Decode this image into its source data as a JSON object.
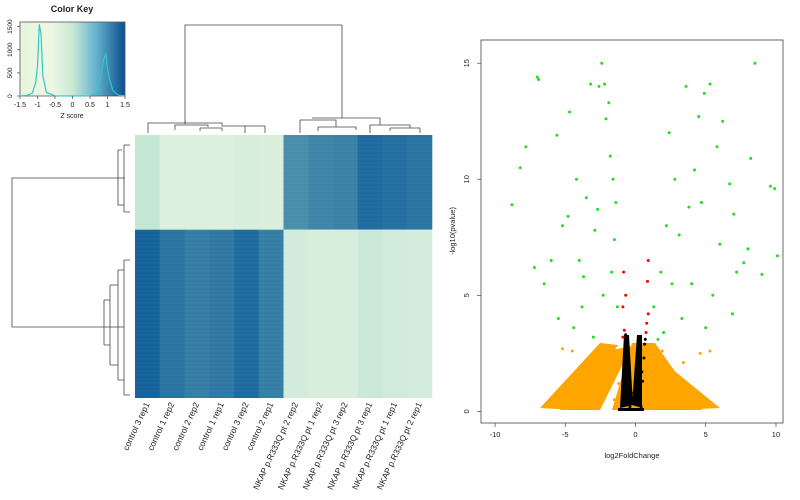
{
  "chart_data": [
    {
      "type": "heatmap",
      "title": "",
      "colorkey": {
        "title": "Color Key",
        "xlabel": "Z score",
        "x_ticks": [
          "-1.5",
          "-1",
          "-0.5",
          "0",
          "0.5",
          "1",
          "1.5"
        ],
        "y_ticks": [
          "0",
          "500",
          "1000",
          "1500"
        ],
        "xlim": [
          -1.5,
          1.5
        ],
        "ylim": [
          0,
          1600
        ],
        "low_color": "#eef7e6",
        "mid_color": "#a8dcc6",
        "high_color": "#0a5a98",
        "histogram": {
          "x": [
            -1.5,
            -1.3,
            -1.15,
            -1.05,
            -1.0,
            -0.95,
            -0.9,
            -0.85,
            -0.75,
            -0.5,
            0.0,
            0.5,
            0.7,
            0.8,
            0.85,
            0.9,
            0.95,
            1.0,
            1.05,
            1.15,
            1.3,
            1.5
          ],
          "y": [
            0,
            15,
            60,
            300,
            650,
            1550,
            1350,
            450,
            80,
            5,
            0,
            5,
            80,
            380,
            650,
            820,
            900,
            600,
            380,
            120,
            20,
            0
          ]
        }
      },
      "columns": [
        "control 3 rep1",
        "control 1 rep2",
        "control 2 rep2",
        "control 1 rep1",
        "control 3 rep2",
        "control 2 rep1",
        "NKAP p.R333Q pt 2 rep2",
        "NKAP p.R333Q pt 1 rep2",
        "NKAP p.R333Q pt 3 rep2",
        "NKAP p.R333Q pt 3 rep1",
        "NKAP p.R333Q pt 1 rep1",
        "NKAP p.R333Q pt 2 rep1"
      ],
      "row_blocks": [
        {
          "fraction": 0.36,
          "z": [
            -0.6,
            -1.1,
            -1.1,
            -1.1,
            -1.0,
            -1.05,
            0.9,
            1.0,
            1.05,
            1.3,
            1.25,
            1.2
          ]
        },
        {
          "fraction": 0.64,
          "z": [
            1.4,
            1.2,
            1.1,
            1.15,
            1.3,
            1.1,
            -0.9,
            -1.0,
            -1.0,
            -0.7,
            -0.85,
            -0.95
          ]
        }
      ]
    },
    {
      "type": "scatter",
      "title": "",
      "xlabel": "log2FoldChange",
      "ylabel": "-log10(pvalue)",
      "xlim": [
        -11,
        10.5
      ],
      "ylim": [
        -0.5,
        16
      ],
      "x_ticks": [
        -10,
        -5,
        0,
        5,
        10
      ],
      "y_ticks": [
        0,
        5,
        10,
        15
      ],
      "colors": {
        "black": "#000000",
        "orange": "#ffa500",
        "red": "#ff0000",
        "green": "#22dd22"
      },
      "series": [
        {
          "color": "black",
          "points": [
            [
              -0.4,
              0.2
            ],
            [
              0.4,
              0.2
            ],
            [
              -0.5,
              1.2
            ],
            [
              0.5,
              1.3
            ],
            [
              -0.6,
              2.4
            ],
            [
              0.6,
              2.3
            ],
            [
              -0.3,
              0.8
            ],
            [
              0.3,
              0.9
            ],
            [
              -0.7,
              3.3
            ],
            [
              0.7,
              3.1
            ],
            [
              -0.2,
              0.4
            ],
            [
              0.25,
              0.5
            ],
            [
              -0.45,
              1.8
            ],
            [
              0.45,
              1.7
            ],
            [
              -0.65,
              2.8
            ],
            [
              0.65,
              2.9
            ]
          ]
        },
        {
          "color": "orange",
          "points": [
            [
              -1.5,
              0.5
            ],
            [
              1.5,
              0.6
            ],
            [
              -2.5,
              1.5
            ],
            [
              2.5,
              1.4
            ],
            [
              -3.5,
              2.2
            ],
            [
              3.4,
              2.1
            ],
            [
              -4.5,
              2.6
            ],
            [
              4.6,
              2.5
            ],
            [
              -1.2,
              1.2
            ],
            [
              1.3,
              1.1
            ],
            [
              -2.0,
              2.0
            ],
            [
              2.1,
              2.2
            ],
            [
              -3.0,
              0.8
            ],
            [
              3.0,
              0.9
            ],
            [
              -5.2,
              2.7
            ],
            [
              5.3,
              2.6
            ],
            [
              -1.8,
              2.7
            ],
            [
              1.9,
              2.6
            ],
            [
              -2.8,
              0.3
            ],
            [
              2.7,
              0.3
            ]
          ]
        },
        {
          "color": "red",
          "points": [
            [
              -0.8,
              3.5
            ],
            [
              0.8,
              3.8
            ],
            [
              -0.9,
              4.5
            ],
            [
              0.9,
              4.2
            ],
            [
              -0.7,
              5.0
            ],
            [
              0.85,
              5.6
            ],
            [
              -0.9,
              3.2
            ],
            [
              0.75,
              3.4
            ],
            [
              -0.85,
              6.0
            ],
            [
              0.9,
              6.5
            ]
          ]
        },
        {
          "color": "green",
          "points": [
            [
              -8.8,
              8.9
            ],
            [
              -8.2,
              10.5
            ],
            [
              -7.8,
              11.4
            ],
            [
              -7.0,
              14.4
            ],
            [
              -6.9,
              14.3
            ],
            [
              -5.6,
              11.9
            ],
            [
              -5.2,
              8.0
            ],
            [
              -4.8,
              8.4
            ],
            [
              -4.7,
              12.9
            ],
            [
              -3.7,
              5.8
            ],
            [
              -3.2,
              14.1
            ],
            [
              -2.6,
              14.0
            ],
            [
              -2.2,
              14.1
            ],
            [
              -1.9,
              13.3
            ],
            [
              -1.8,
              11.0
            ],
            [
              -1.6,
              10.0
            ],
            [
              -2.4,
              15.0
            ],
            [
              -2.1,
              12.6
            ],
            [
              -3.5,
              9.2
            ],
            [
              -4.0,
              6.5
            ],
            [
              -3.8,
              4.5
            ],
            [
              -2.9,
              7.8
            ],
            [
              -2.3,
              5.0
            ],
            [
              -1.7,
              6.0
            ],
            [
              -1.3,
              4.5
            ],
            [
              -6.0,
              6.5
            ],
            [
              -6.5,
              5.5
            ],
            [
              -7.2,
              6.2
            ],
            [
              -5.5,
              4.0
            ],
            [
              -4.4,
              3.6
            ],
            [
              -3.0,
              3.2
            ],
            [
              -1.4,
              9.0
            ],
            [
              -1.5,
              7.4
            ],
            [
              -4.2,
              10.0
            ],
            [
              -2.7,
              8.7
            ],
            [
              1.3,
              4.5
            ],
            [
              1.8,
              6.0
            ],
            [
              2.2,
              8.0
            ],
            [
              2.6,
              5.5
            ],
            [
              3.1,
              7.6
            ],
            [
              3.6,
              14.0
            ],
            [
              4.2,
              10.4
            ],
            [
              4.5,
              12.7
            ],
            [
              4.9,
              13.7
            ],
            [
              5.3,
              14.1
            ],
            [
              5.8,
              11.4
            ],
            [
              6.2,
              12.5
            ],
            [
              6.7,
              9.8
            ],
            [
              7.2,
              6.0
            ],
            [
              7.7,
              6.4
            ],
            [
              8.2,
              10.9
            ],
            [
              8.5,
              15.0
            ],
            [
              9.0,
              5.9
            ],
            [
              9.6,
              9.7
            ],
            [
              9.9,
              9.6
            ],
            [
              10.1,
              6.7
            ],
            [
              3.3,
              4.0
            ],
            [
              4.0,
              5.5
            ],
            [
              5.0,
              3.6
            ],
            [
              2.0,
              3.4
            ],
            [
              2.8,
              10.0
            ],
            [
              6.0,
              7.2
            ],
            [
              7.0,
              8.5
            ],
            [
              5.5,
              5.0
            ],
            [
              3.8,
              8.8
            ],
            [
              1.6,
              3.1
            ],
            [
              6.9,
              4.2
            ],
            [
              8.0,
              7.0
            ],
            [
              4.7,
              9.0
            ],
            [
              2.4,
              12.0
            ]
          ]
        }
      ]
    }
  ]
}
